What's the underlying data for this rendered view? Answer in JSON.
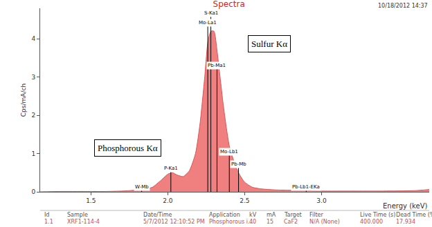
{
  "chart_data": {
    "type": "area",
    "title": "Spectra",
    "subtitle": "10/18/2012 14:37",
    "x_label": "Energy (keV)",
    "y_label": "Cps/mA/ch",
    "color": "#f07f7f",
    "x": [
      1.17,
      1.3,
      1.4,
      1.5,
      1.6,
      1.7,
      1.75,
      1.8,
      1.85,
      1.9,
      1.95,
      2.0,
      2.03,
      2.06,
      2.1,
      2.14,
      2.18,
      2.21,
      2.24,
      2.26,
      2.28,
      2.3,
      2.32,
      2.34,
      2.36,
      2.38,
      2.4,
      2.43,
      2.46,
      2.5,
      2.55,
      2.6,
      2.7,
      2.8,
      2.9,
      3.0,
      3.2,
      3.4,
      3.6,
      3.7
    ],
    "values": [
      0.0,
      0.01,
      0.01,
      0.01,
      0.01,
      0.02,
      0.03,
      0.05,
      0.07,
      0.12,
      0.28,
      0.46,
      0.5,
      0.44,
      0.4,
      0.55,
      1.0,
      1.8,
      3.0,
      3.9,
      4.2,
      4.2,
      3.7,
      3.0,
      2.3,
      1.7,
      1.2,
      0.8,
      0.5,
      0.25,
      0.12,
      0.08,
      0.05,
      0.04,
      0.03,
      0.02,
      0.02,
      0.02,
      0.03,
      0.06
    ],
    "xlim": [
      1.17,
      3.7
    ],
    "xticks": [
      1.5,
      {
        "value": 2,
        "label": "2.0"
      },
      2.5,
      {
        "value": 3,
        "label": "3.0"
      }
    ],
    "ylim": [
      0,
      4.8
    ],
    "yticks": [
      0,
      1,
      2,
      3,
      4
    ],
    "grid": false,
    "peaks": [
      {
        "label": "S-Ka1",
        "x": 2.28,
        "y": 4.68
      },
      {
        "label": "Mo-La1",
        "x": 2.26,
        "y": 4.42
      },
      {
        "label": "Pb-Ma1",
        "x": 2.32,
        "y": 3.3
      },
      {
        "label": "Mo-Lb1",
        "x": 2.4,
        "y": 1.05
      },
      {
        "label": "Pb-Mb",
        "x": 2.46,
        "y": 0.72
      },
      {
        "label": "P-Ka1",
        "x": 2.02,
        "y": 0.62
      },
      {
        "label": "W-Mb",
        "x": 1.83,
        "y": 0.12
      },
      {
        "label": "Pb-Lb1-EKa",
        "x": 2.9,
        "y": 0.12
      }
    ],
    "annotations": [
      {
        "text": "Sulfur Kα",
        "x": 2.66,
        "y": 3.87
      },
      {
        "text": "Phosphorous Kα",
        "x": 1.74,
        "y": 1.15
      }
    ],
    "info_table": {
      "headers": [
        "Id",
        "Sample",
        "Date/Time",
        "Application",
        "kV",
        "mA",
        "Target",
        "Filter",
        "Live Time (s)",
        "Dead Time (%)"
      ],
      "rows": [
        [
          "1.1",
          "XRF1-114-4",
          "5/7/2012 12:10:52 PM",
          "Phosphorous i...",
          "40",
          "15",
          "CaF2",
          "N/A (None)",
          "400.000",
          "17.934"
        ]
      ]
    }
  }
}
